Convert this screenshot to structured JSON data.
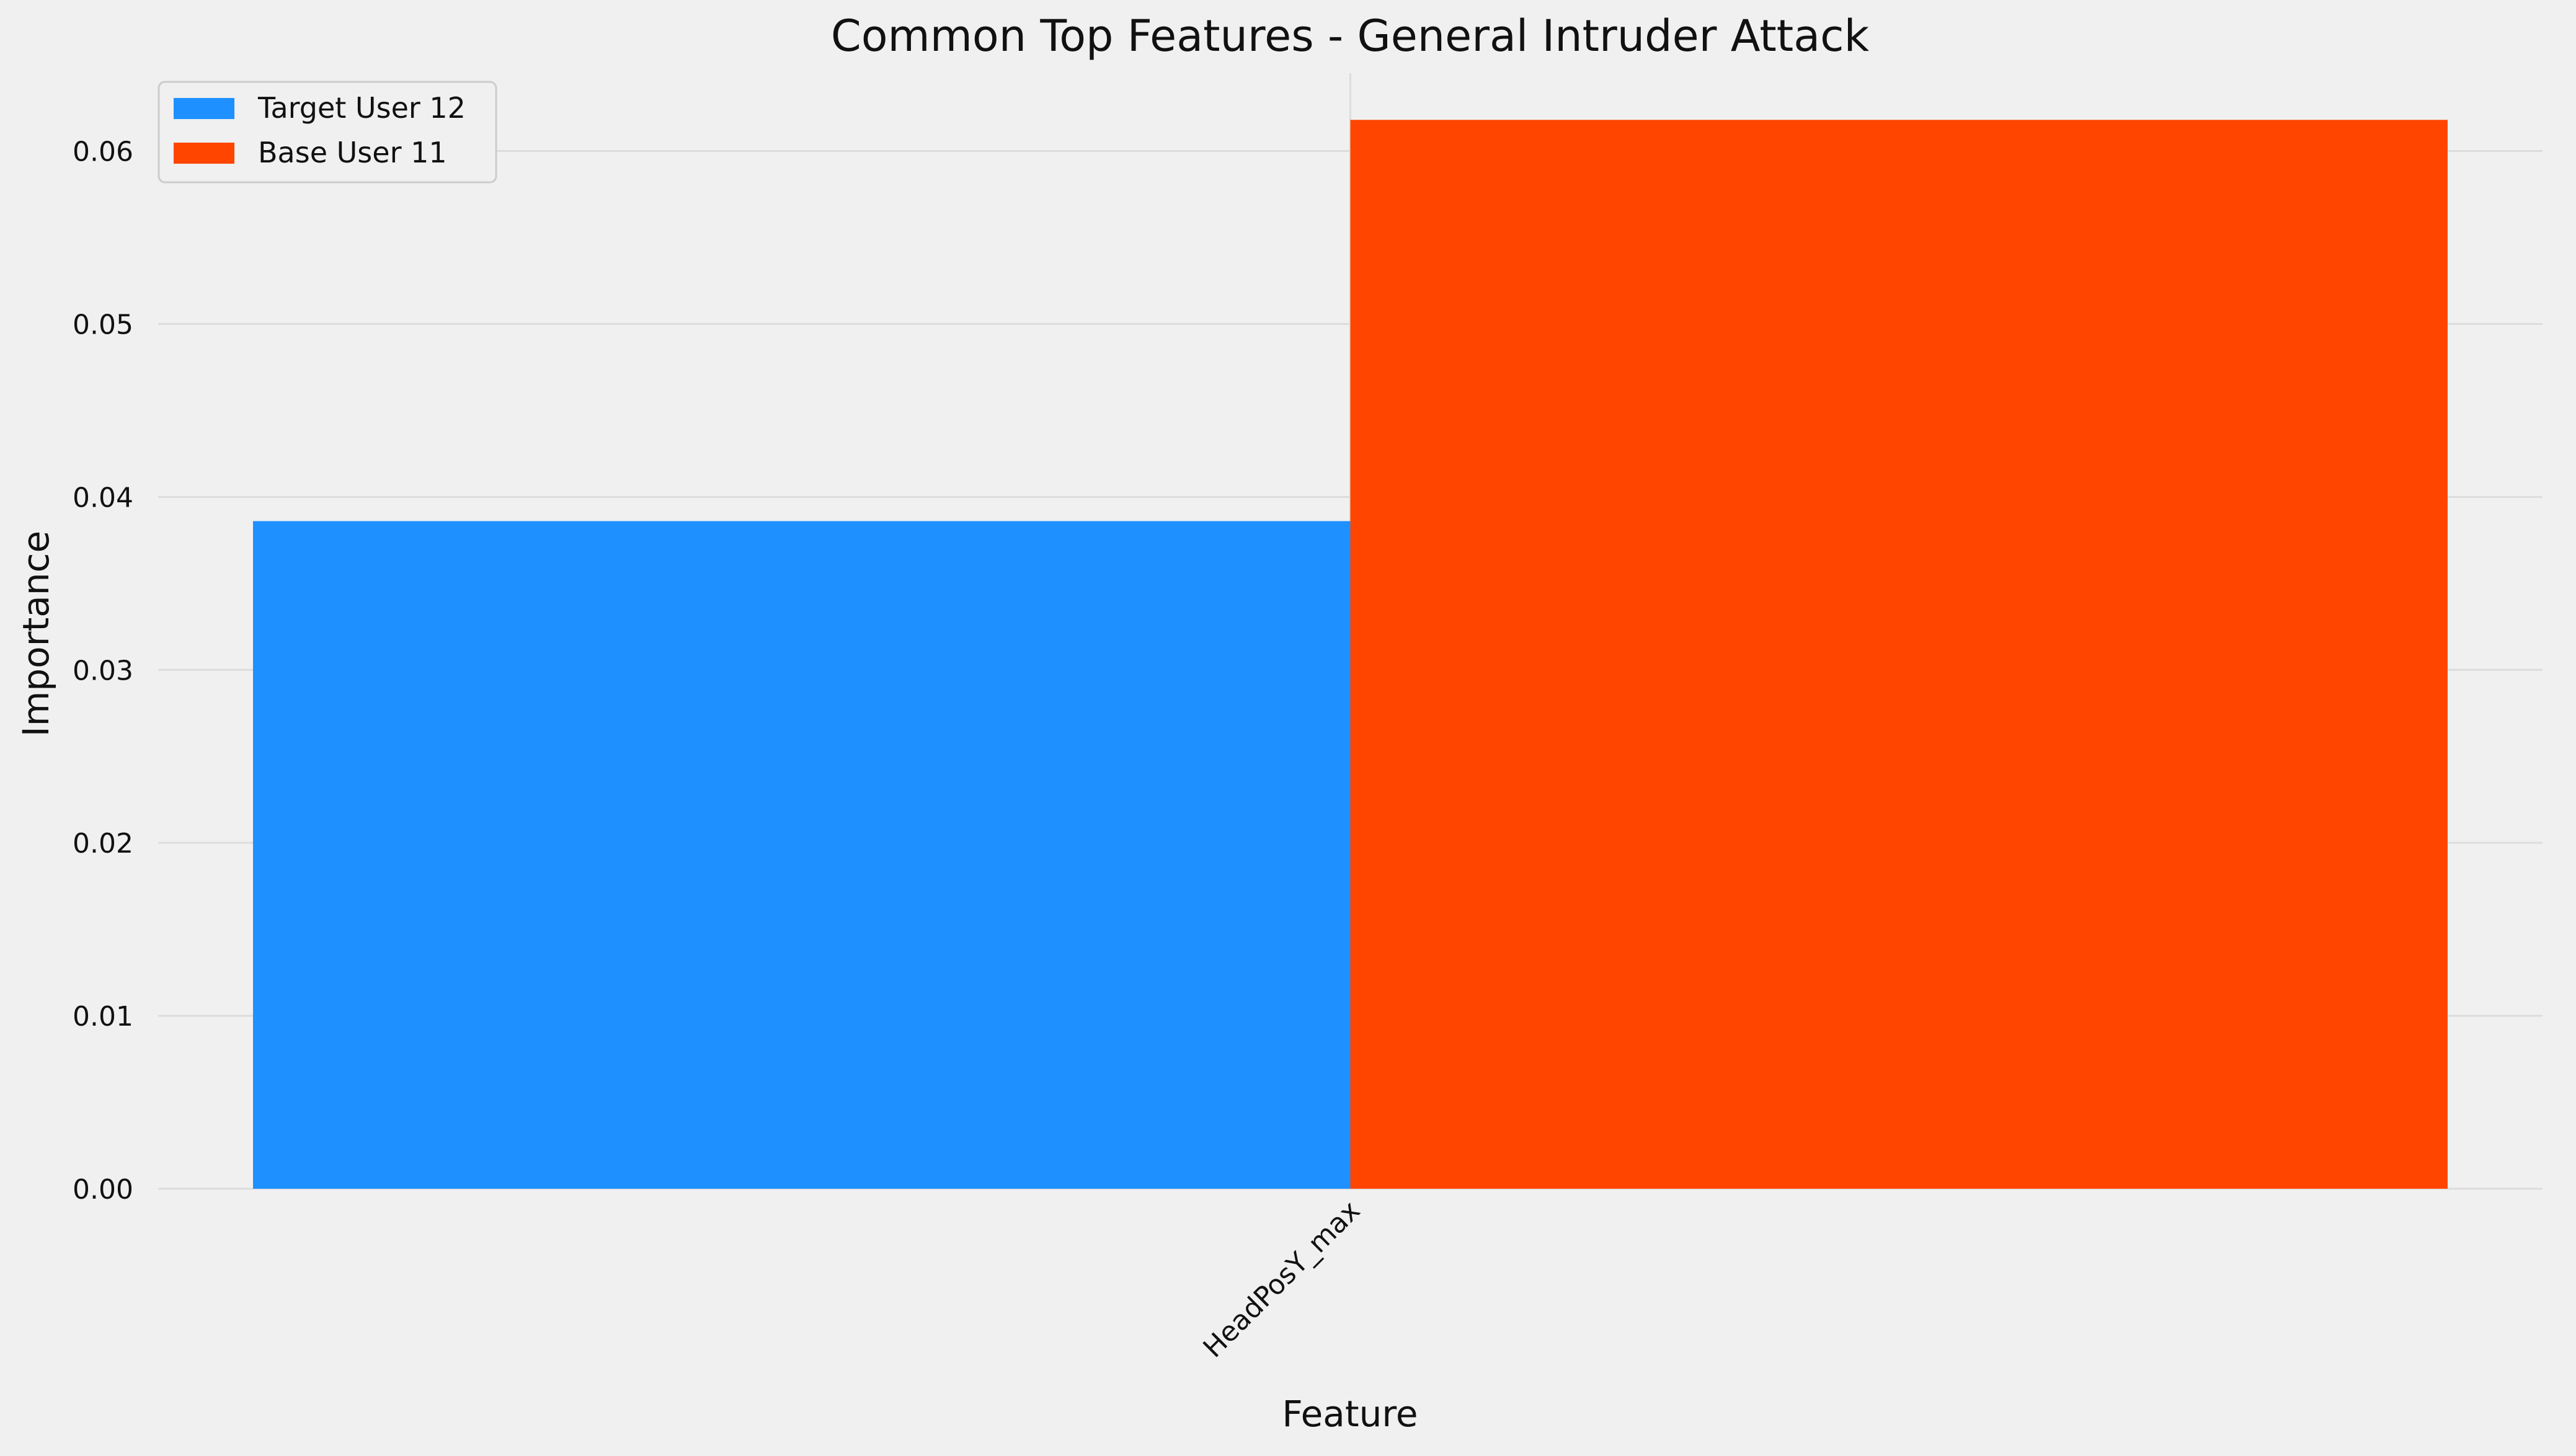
{
  "chart_data": {
    "type": "bar",
    "title": "Common Top Features - General Intruder Attack",
    "xlabel": "Feature",
    "ylabel": "Importance",
    "categories": [
      "HeadPosY_max"
    ],
    "series": [
      {
        "name": "Target User 12",
        "values": [
          0.0386
        ],
        "color": "#1e90ff"
      },
      {
        "name": "Base User 11",
        "values": [
          0.0618
        ],
        "color": "#ff4500"
      }
    ],
    "ylim": [
      0,
      0.0645
    ],
    "yticks": [
      "0.00",
      "0.01",
      "0.02",
      "0.03",
      "0.04",
      "0.05",
      "0.06"
    ],
    "ytick_values": [
      0,
      0.01,
      0.02,
      0.03,
      0.04,
      0.05,
      0.06
    ],
    "grid": true,
    "legend_position": "top-left",
    "background_color": "#f0f0f0"
  }
}
